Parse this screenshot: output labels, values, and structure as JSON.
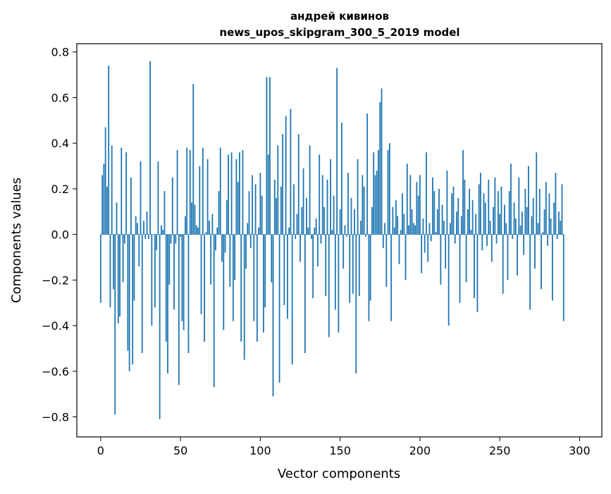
{
  "chart_data": {
    "type": "bar",
    "title_line1": "андрей кивинов",
    "title_line2": "news_upos_skipgram_300_5_2019 model",
    "xlabel": "Vector components",
    "ylabel": "Components values",
    "xlim": [
      -14.95,
      313.95
    ],
    "ylim": [
      -0.8879,
      0.8363
    ],
    "x_ticks": [
      0,
      50,
      100,
      150,
      200,
      250,
      300
    ],
    "x_tick_labels": [
      "0",
      "50",
      "100",
      "150",
      "200",
      "250",
      "300"
    ],
    "y_ticks": [
      -0.8,
      -0.6,
      -0.4,
      -0.2,
      0.0,
      0.2,
      0.4,
      0.6,
      0.8
    ],
    "y_tick_labels": [
      "−0.8",
      "−0.6",
      "−0.4",
      "−0.2",
      "0.0",
      "0.2",
      "0.4",
      "0.6",
      "0.8"
    ],
    "bar_color": "#1f77b4",
    "grid": false,
    "legend": "none",
    "values": [
      -0.3,
      0.26,
      0.31,
      0.47,
      0.21,
      0.74,
      -0.32,
      0.39,
      -0.24,
      -0.79,
      0.14,
      -0.39,
      -0.36,
      0.38,
      -0.21,
      -0.04,
      0.36,
      -0.51,
      -0.6,
      0.25,
      -0.57,
      -0.29,
      0.08,
      0.05,
      -0.14,
      0.32,
      -0.52,
      0.06,
      -0.02,
      0.1,
      -0.02,
      0.76,
      -0.4,
      0.0,
      -0.32,
      -0.07,
      0.32,
      -0.81,
      0.04,
      0.02,
      0.19,
      -0.47,
      -0.61,
      -0.22,
      -0.04,
      0.25,
      -0.33,
      -0.04,
      0.37,
      -0.66,
      -0.01,
      -0.38,
      -0.42,
      0.08,
      0.38,
      -0.52,
      0.37,
      0.14,
      0.66,
      0.13,
      0.04,
      0.03,
      0.3,
      -0.35,
      0.38,
      -0.47,
      0.01,
      0.33,
      0.06,
      -0.22,
      0.09,
      -0.67,
      -0.07,
      0.03,
      0.19,
      0.38,
      -0.12,
      -0.42,
      -0.08,
      0.15,
      0.35,
      -0.23,
      0.36,
      -0.38,
      -0.2,
      0.33,
      0.23,
      0.36,
      -0.47,
      0.37,
      -0.55,
      -0.15,
      0.05,
      0.19,
      -0.06,
      0.26,
      -0.38,
      0.22,
      -0.47,
      0.03,
      0.27,
      0.17,
      -0.43,
      -0.32,
      0.69,
      0.35,
      0.69,
      -0.21,
      -0.71,
      0.24,
      0.16,
      0.39,
      -0.65,
      0.21,
      0.44,
      -0.31,
      0.52,
      -0.37,
      0.03,
      0.55,
      -0.57,
      0.22,
      -0.02,
      0.09,
      0.44,
      -0.12,
      0.12,
      0.29,
      -0.52,
      0.16,
      0.03,
      0.39,
      -0.02,
      -0.28,
      0.03,
      0.07,
      -0.14,
      0.35,
      -0.04,
      0.26,
      0.12,
      -0.27,
      0.24,
      -0.45,
      0.33,
      0.02,
      0.17,
      -0.33,
      0.73,
      -0.43,
      0.11,
      0.49,
      -0.15,
      0.04,
      -0.01,
      0.27,
      -0.3,
      0.16,
      -0.26,
      0.11,
      -0.61,
      0.33,
      -0.27,
      0.06,
      0.26,
      0.21,
      -0.01,
      0.53,
      -0.38,
      -0.29,
      0.12,
      0.36,
      0.26,
      0.28,
      0.37,
      0.58,
      0.64,
      -0.06,
      0.05,
      -0.23,
      0.37,
      0.4,
      -0.38,
      0.12,
      0.03,
      0.15,
      0.08,
      -0.13,
      0.02,
      0.18,
      0.09,
      -0.2,
      0.31,
      0.04,
      0.26,
      0.11,
      0.05,
      0.04,
      0.23,
      0.17,
      0.26,
      -0.17,
      0.07,
      -0.08,
      0.36,
      -0.12,
      0.05,
      -0.03,
      0.25,
      0.19,
      0.01,
      0.11,
      0.2,
      -0.22,
      0.13,
      0.06,
      -0.15,
      0.28,
      -0.4,
      0.05,
      0.18,
      0.21,
      -0.04,
      0.1,
      0.16,
      -0.3,
      0.08,
      0.37,
      0.24,
      -0.21,
      0.11,
      0.2,
      0.02,
      0.15,
      -0.28,
      0.09,
      -0.34,
      0.22,
      0.27,
      -0.07,
      0.18,
      0.14,
      -0.05,
      0.24,
      0.06,
      -0.12,
      0.12,
      0.25,
      -0.04,
      0.19,
      0.09,
      0.21,
      -0.26,
      0.13,
      0.05,
      -0.2,
      0.19,
      0.31,
      -0.02,
      0.14,
      0.07,
      -0.18,
      0.25,
      0.04,
      0.1,
      -0.09,
      0.2,
      0.12,
      0.3,
      -0.33,
      0.08,
      0.16,
      -0.15,
      0.36,
      0.05,
      0.2,
      -0.24,
      0.01,
      0.11,
      0.23,
      -0.05,
      0.18,
      0.07,
      -0.29,
      0.14,
      0.27,
      -0.02,
      0.1,
      0.06,
      0.22,
      -0.38
    ]
  }
}
